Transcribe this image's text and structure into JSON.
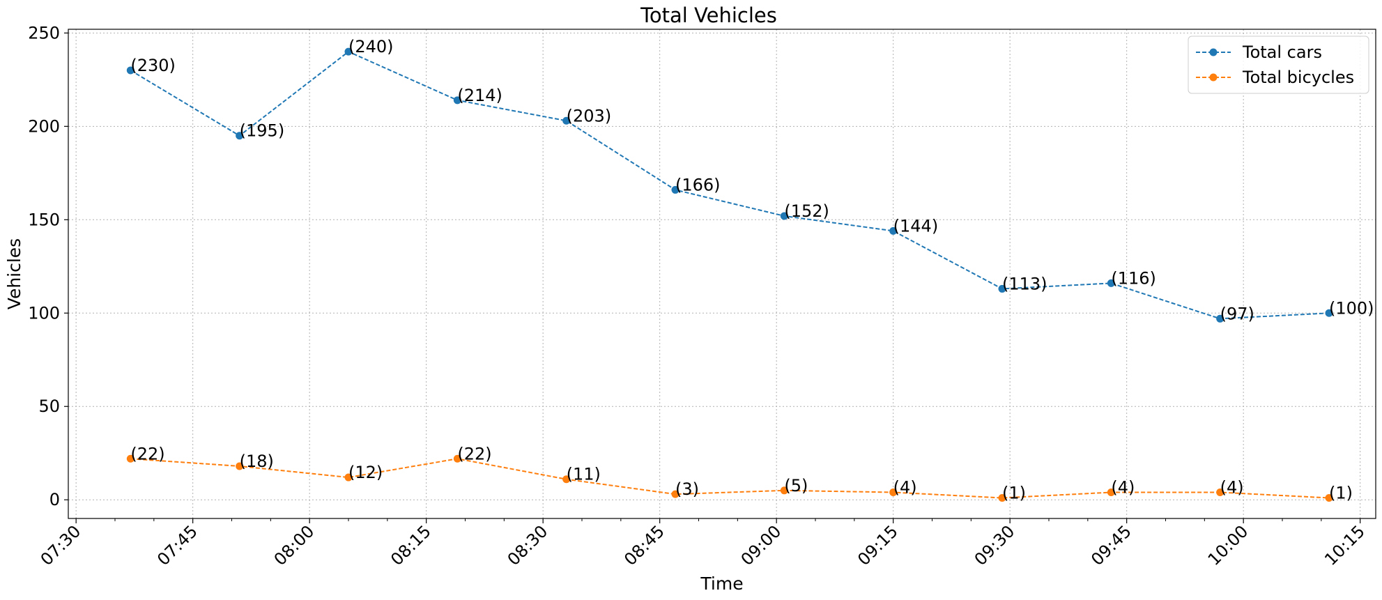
{
  "chart_data": {
    "type": "line",
    "title": "Total Vehicles",
    "xlabel": "Time",
    "ylabel": "Vehicles",
    "x_range": [
      "07:29",
      "10:17"
    ],
    "ylim": [
      -10,
      252
    ],
    "x_ticks": [
      "07:30",
      "07:45",
      "08:00",
      "08:15",
      "08:30",
      "08:45",
      "09:00",
      "09:15",
      "09:30",
      "09:45",
      "10:00",
      "10:15"
    ],
    "y_ticks": [
      0,
      50,
      100,
      150,
      200,
      250
    ],
    "grid": true,
    "legend_position": "top-right",
    "x": [
      "07:37",
      "07:51",
      "08:05",
      "08:19",
      "08:33",
      "08:47",
      "09:01",
      "09:15",
      "09:29",
      "09:43",
      "09:57",
      "10:11"
    ],
    "series": [
      {
        "name": "Total cars",
        "color": "#1f77b4",
        "values": [
          230,
          195,
          240,
          214,
          203,
          166,
          152,
          144,
          113,
          116,
          97,
          100
        ],
        "labels": [
          "(230)",
          "(195)",
          "(240)",
          "(214)",
          "(203)",
          "(166)",
          "(152)",
          "(144)",
          "(113)",
          "(116)",
          "(97)",
          "(100)"
        ]
      },
      {
        "name": "Total bicycles",
        "color": "#ff7f0e",
        "values": [
          22,
          18,
          12,
          22,
          11,
          3,
          5,
          4,
          1,
          4,
          4,
          1
        ],
        "labels": [
          "(22)",
          "(18)",
          "(12)",
          "(22)",
          "(11)",
          "(3)",
          "(5)",
          "(4)",
          "(1)",
          "(4)",
          "(4)",
          "(1)"
        ]
      }
    ]
  }
}
